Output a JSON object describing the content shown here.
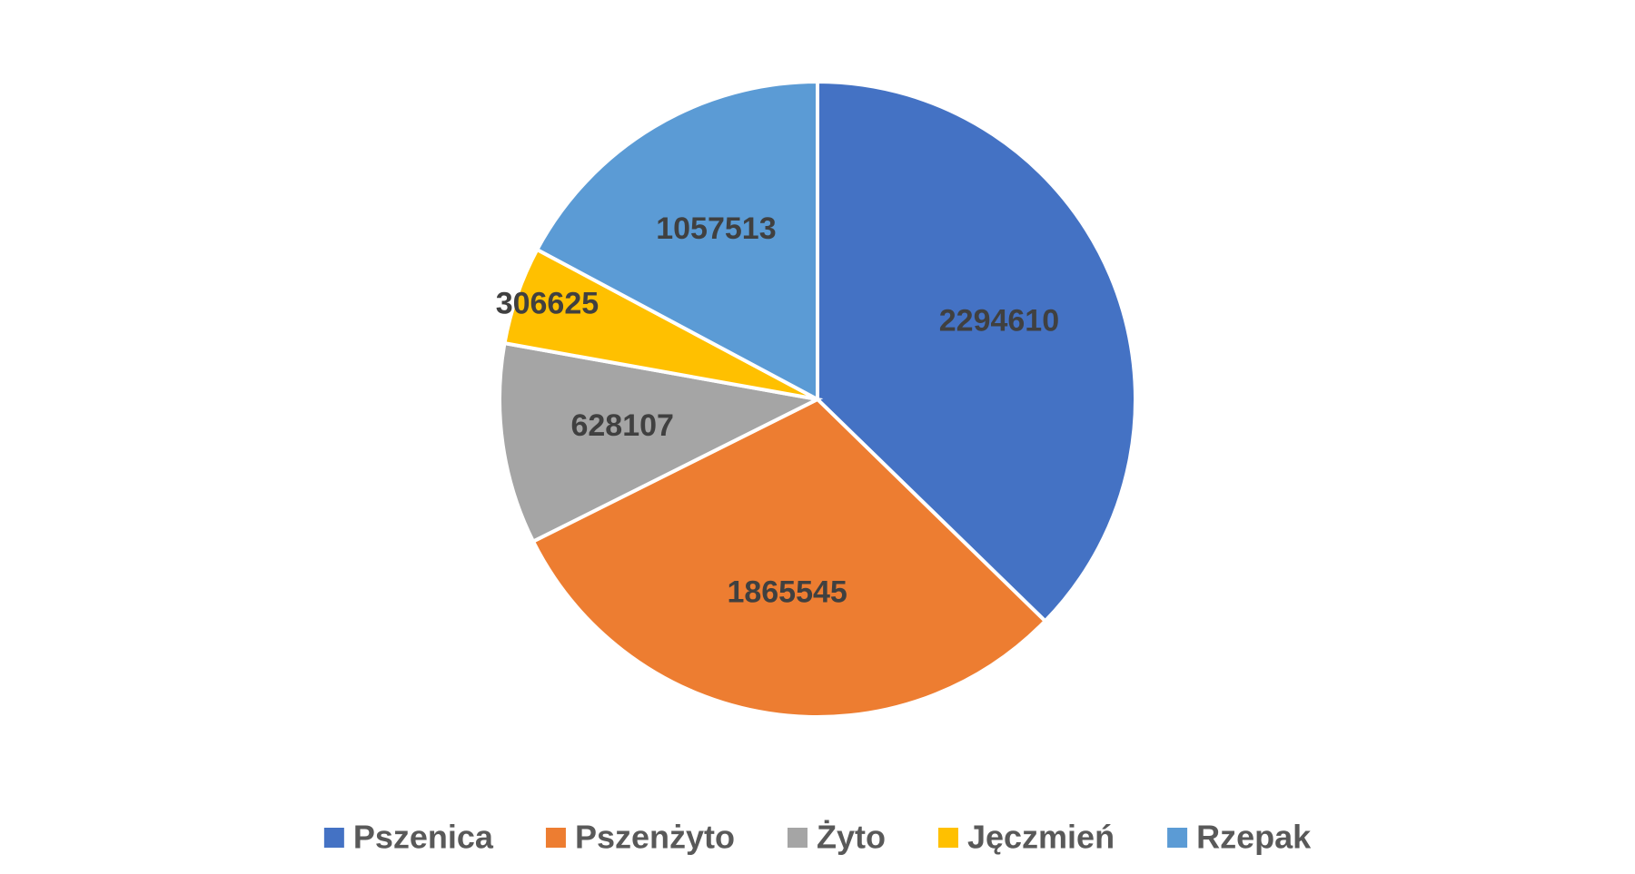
{
  "chart_data": {
    "type": "pie",
    "categories": [
      "Pszenica",
      "Pszenżyto",
      "Żyto",
      "Jęczmień",
      "Rzepak"
    ],
    "values": [
      2294610,
      1865545,
      628107,
      306625,
      1057513
    ],
    "colors": [
      "#4472c4",
      "#ed7d31",
      "#a5a5a5",
      "#ffc000",
      "#5b9bd5"
    ],
    "legend": "bottom"
  }
}
